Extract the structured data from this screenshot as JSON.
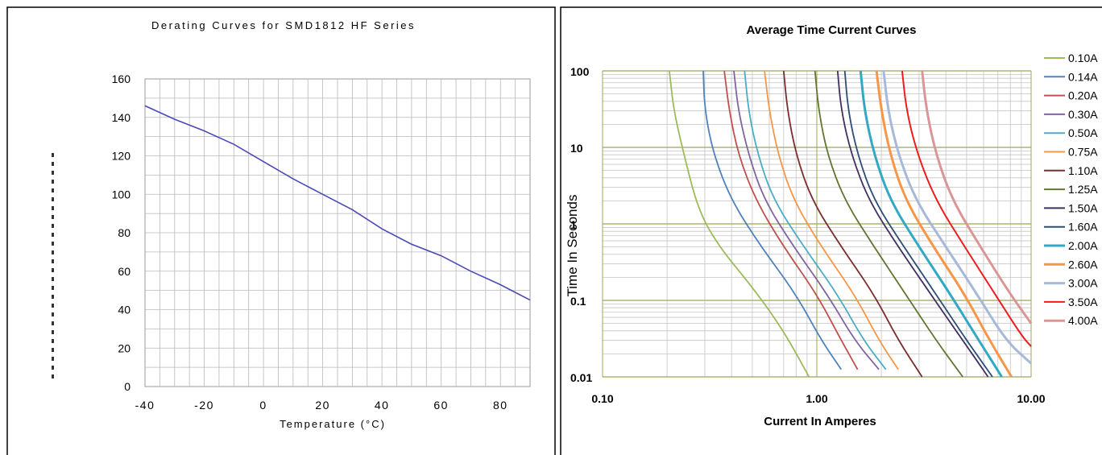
{
  "chart_data": [
    {
      "type": "line",
      "title": "Derating Curves for SMD1812 HF Series",
      "xlabel": "Temperature (°C)",
      "ylabel": "",
      "xlim": [
        -40,
        90
      ],
      "ylim": [
        0,
        160
      ],
      "x_ticks": [
        -40,
        -20,
        0,
        20,
        40,
        60,
        80
      ],
      "y_ticks": [
        0,
        20,
        40,
        60,
        80,
        100,
        120,
        140,
        160
      ],
      "grid": true,
      "color": "#4a4ab8",
      "series": [
        {
          "x": [
            -40,
            -30,
            -20,
            -10,
            0,
            10,
            20,
            30,
            40,
            50,
            60,
            70,
            80,
            90
          ],
          "values": [
            146,
            139,
            133,
            126,
            117,
            108,
            100,
            92,
            82,
            74,
            68,
            60,
            53,
            45
          ]
        }
      ]
    },
    {
      "type": "line",
      "title": "Average Time Current Curves",
      "xlabel": "Current In Amperes",
      "ylabel": "Time In Seconds",
      "x_scale": "log",
      "y_scale": "log",
      "xlim": [
        0.1,
        10
      ],
      "ylim": [
        0.01,
        100
      ],
      "x_ticks": [
        "0.10",
        "1.00",
        "10.00"
      ],
      "y_ticks": [
        "0.01",
        "0.1",
        "1",
        "10",
        "100"
      ],
      "grid": true,
      "legend_position": "right",
      "series": [
        {
          "name": "0.10A",
          "color": "#9bbb59",
          "x": [
            0.205,
            0.215,
            0.24,
            0.28,
            0.35,
            0.5,
            0.7,
            0.92
          ],
          "values": [
            100,
            30,
            8,
            1.5,
            0.5,
            0.15,
            0.04,
            0.01
          ]
        },
        {
          "name": "0.14A",
          "color": "#4f81bd",
          "x": [
            0.295,
            0.3,
            0.33,
            0.4,
            0.55,
            0.8,
            1.05,
            1.3
          ],
          "values": [
            100,
            30,
            8,
            2,
            0.5,
            0.12,
            0.03,
            0.0125
          ]
        },
        {
          "name": "0.20A",
          "color": "#c0504d",
          "x": [
            0.37,
            0.39,
            0.43,
            0.52,
            0.7,
            1.0,
            1.3,
            1.55
          ],
          "values": [
            100,
            30,
            8,
            2,
            0.5,
            0.12,
            0.03,
            0.0125
          ]
        },
        {
          "name": "0.30A",
          "color": "#8064a2",
          "x": [
            0.41,
            0.43,
            0.48,
            0.57,
            0.78,
            1.12,
            1.5,
            1.95
          ],
          "values": [
            100,
            30,
            8,
            2,
            0.5,
            0.12,
            0.03,
            0.0125
          ]
        },
        {
          "name": "0.50A",
          "color": "#4bacc6",
          "x": [
            0.46,
            0.48,
            0.53,
            0.63,
            0.87,
            1.25,
            1.65,
            2.1
          ],
          "values": [
            100,
            30,
            8,
            2,
            0.5,
            0.12,
            0.03,
            0.0125
          ]
        },
        {
          "name": "0.75A",
          "color": "#f79646",
          "x": [
            0.57,
            0.6,
            0.66,
            0.78,
            1.05,
            1.5,
            1.95,
            2.4
          ],
          "values": [
            100,
            30,
            8,
            2,
            0.5,
            0.12,
            0.03,
            0.0125
          ]
        },
        {
          "name": "1.10A",
          "color": "#7b2d2d",
          "x": [
            0.7,
            0.73,
            0.8,
            0.95,
            1.3,
            1.85,
            2.4,
            3.1
          ],
          "values": [
            100,
            30,
            8,
            2,
            0.5,
            0.12,
            0.03,
            0.01
          ]
        },
        {
          "name": "1.25A",
          "color": "#5f7530",
          "x": [
            0.98,
            1.02,
            1.12,
            1.35,
            1.85,
            2.6,
            3.6,
            4.8
          ],
          "values": [
            100,
            30,
            8,
            2,
            0.5,
            0.12,
            0.03,
            0.01
          ]
        },
        {
          "name": "1.50A",
          "color": "#403060",
          "x": [
            1.25,
            1.3,
            1.45,
            1.75,
            2.4,
            3.4,
            4.8,
            6.3
          ],
          "values": [
            100,
            30,
            8,
            2,
            0.5,
            0.12,
            0.03,
            0.01
          ]
        },
        {
          "name": "1.60A",
          "color": "#2c4d75",
          "x": [
            1.35,
            1.4,
            1.55,
            1.85,
            2.55,
            3.6,
            5.0,
            6.6
          ],
          "values": [
            100,
            30,
            8,
            2,
            0.5,
            0.12,
            0.03,
            0.01
          ]
        },
        {
          "name": "2.00A",
          "color": "#31a8c4",
          "x": [
            1.6,
            1.67,
            1.85,
            2.2,
            3.0,
            4.2,
            5.7,
            7.3
          ],
          "values": [
            100,
            30,
            8,
            2,
            0.5,
            0.12,
            0.03,
            0.01
          ],
          "width": 3
        },
        {
          "name": "2.60A",
          "color": "#f79646",
          "x": [
            1.9,
            2.0,
            2.2,
            2.6,
            3.5,
            4.9,
            6.4,
            8.1
          ],
          "values": [
            100,
            30,
            8,
            2,
            0.5,
            0.12,
            0.03,
            0.01
          ],
          "width": 3
        },
        {
          "name": "3.00A",
          "color": "#a7b9d8",
          "x": [
            2.05,
            2.15,
            2.4,
            2.9,
            4.0,
            5.6,
            7.6,
            10.0
          ],
          "values": [
            100,
            30,
            8,
            2,
            0.5,
            0.12,
            0.03,
            0.015
          ],
          "width": 3
        },
        {
          "name": "3.50A",
          "color": "#ee1c1c",
          "x": [
            2.5,
            2.62,
            2.95,
            3.6,
            4.9,
            6.8,
            9.0,
            10.0
          ],
          "values": [
            100,
            30,
            8,
            2,
            0.5,
            0.12,
            0.035,
            0.025
          ],
          "width": 2
        },
        {
          "name": "4.00A",
          "color": "#d99694",
          "x": [
            3.1,
            3.25,
            3.6,
            4.3,
            5.8,
            8.0,
            10.0
          ],
          "values": [
            100,
            30,
            8,
            2,
            0.5,
            0.12,
            0.05
          ],
          "width": 3
        }
      ]
    }
  ]
}
